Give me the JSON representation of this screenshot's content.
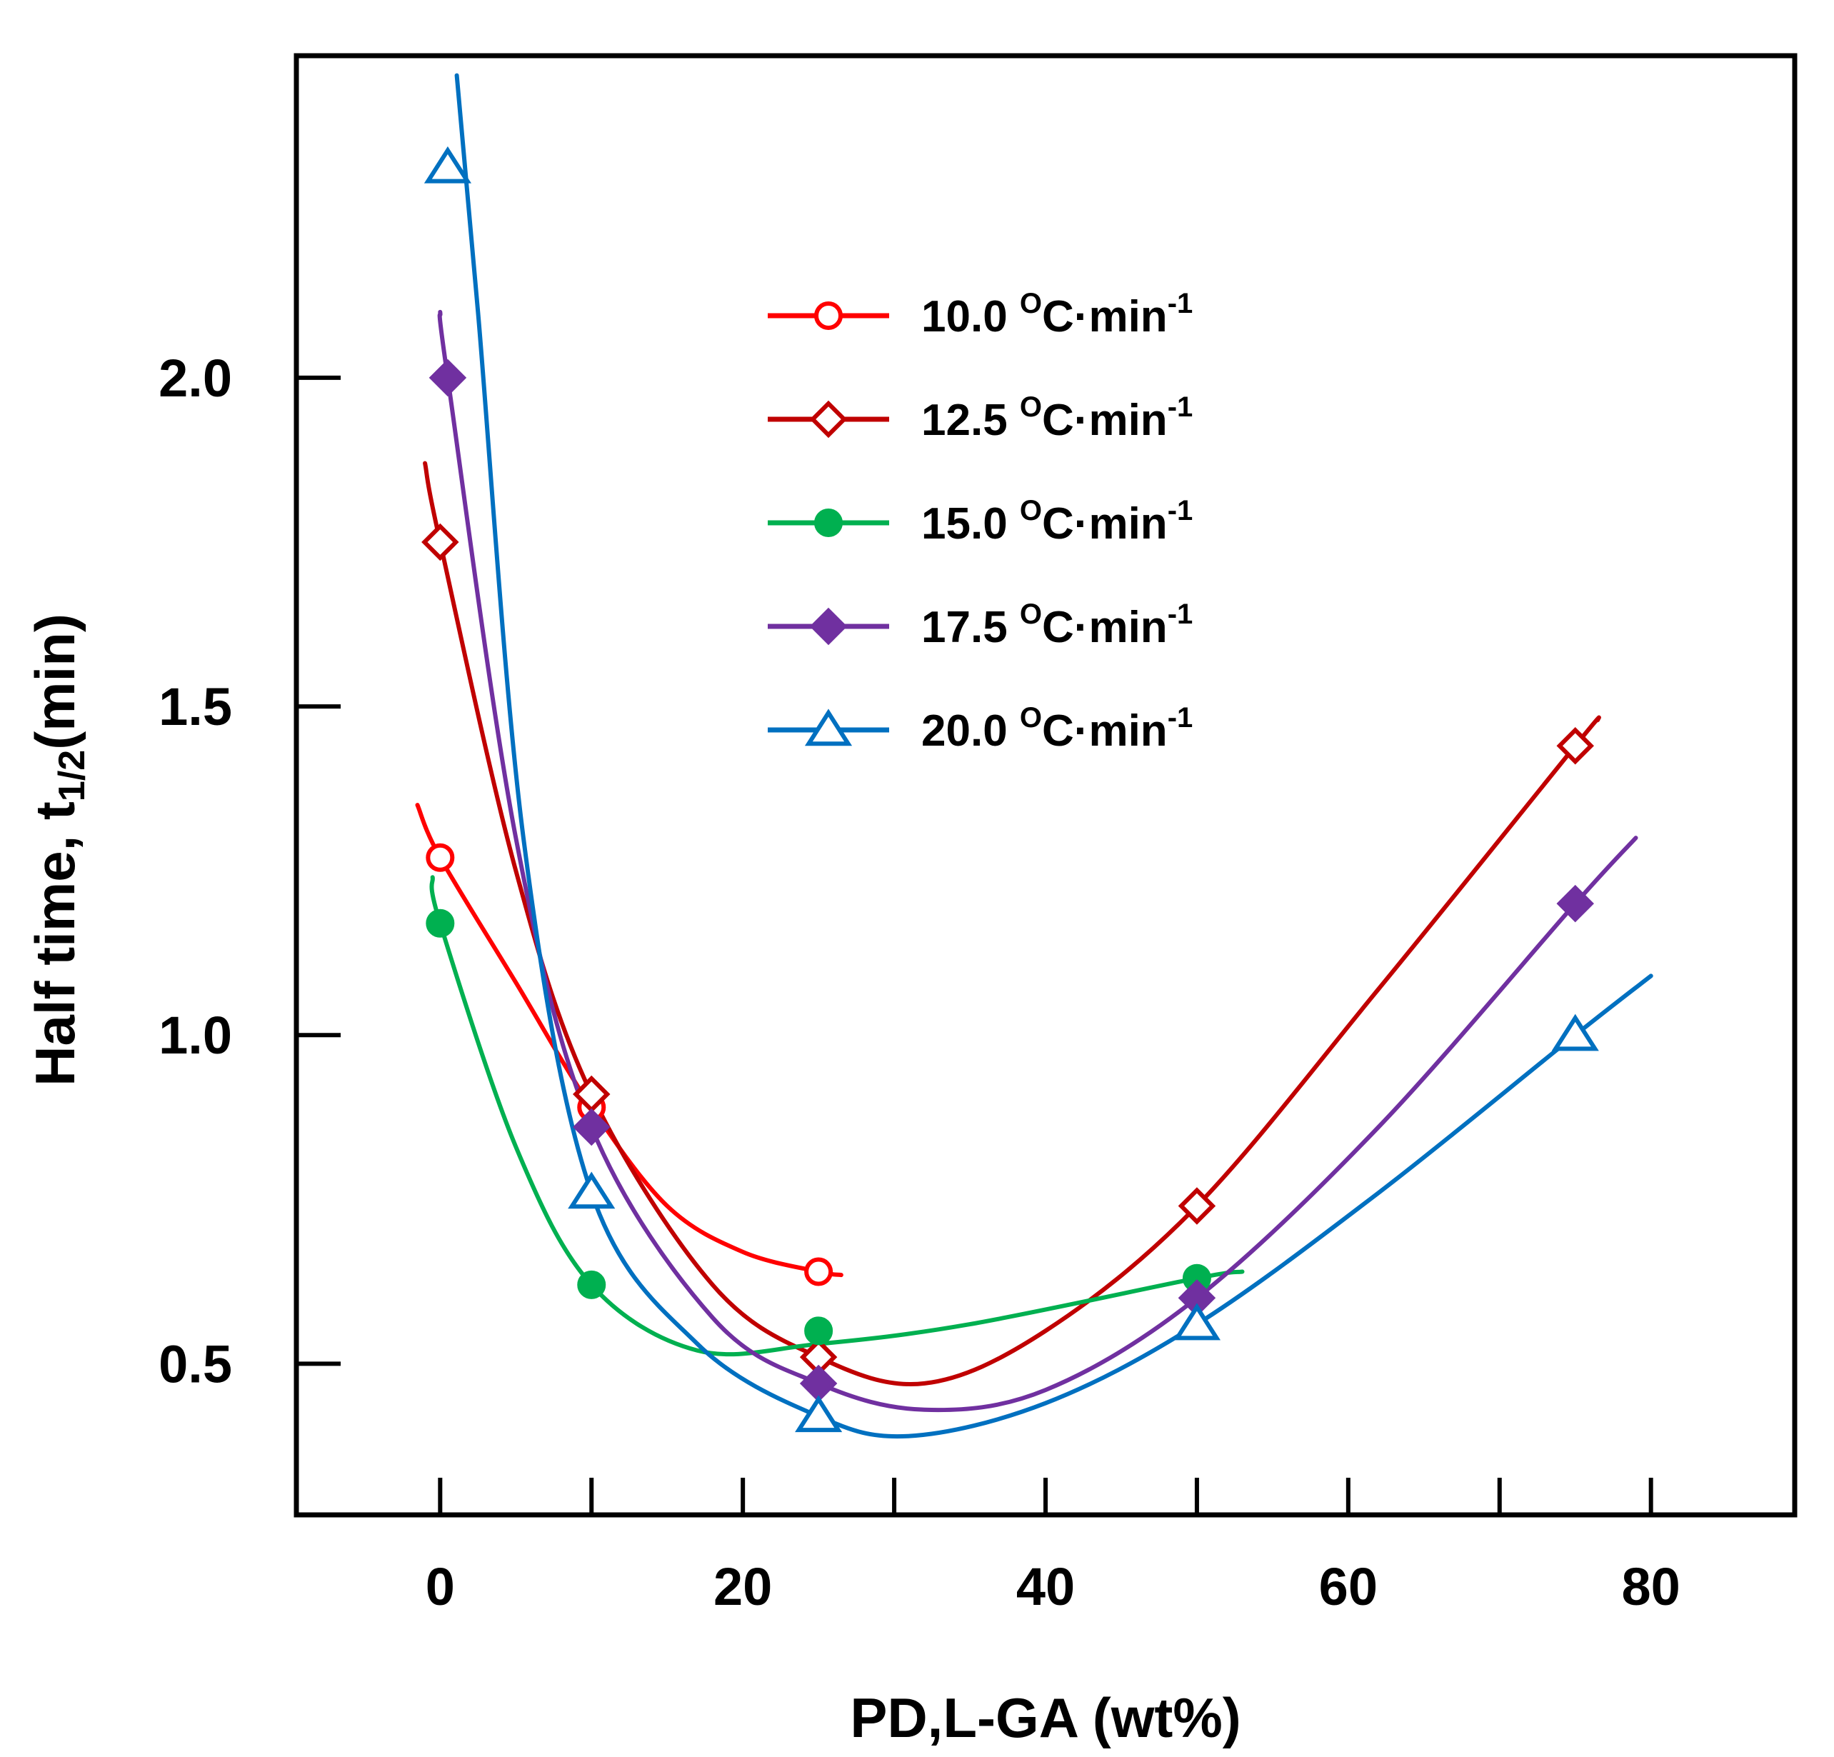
{
  "chart_data": {
    "type": "line",
    "title": "",
    "xlabel": "PD,L-GA (wt%)",
    "ylabel_main": "Half time, t",
    "ylabel_sub": "1/2",
    "ylabel_unit": "(min)",
    "xlim": [
      -9.5,
      89.5
    ],
    "ylim": [
      0.27,
      2.49
    ],
    "x_ticks": [
      0,
      20,
      40,
      60,
      80
    ],
    "x_minor_ticks": [
      10,
      30,
      50,
      70
    ],
    "y_ticks": [
      0.5,
      1.0,
      1.5,
      2.0
    ],
    "x_tick_labels": [
      "0",
      "20",
      "40",
      "60",
      "80"
    ],
    "y_tick_labels": [
      "0.5",
      "1.0",
      "1.5",
      "2.0"
    ],
    "legend_position": "top-center",
    "grid": false,
    "series": [
      {
        "name": "10.0",
        "legend_number": "10.0",
        "legend_unit_pre": "C·min",
        "legend_exp": "-1",
        "legend_sup_o": "O",
        "color": "#ff0000",
        "marker": "open-circle",
        "points": [
          [
            0,
            1.27
          ],
          [
            10,
            0.89
          ],
          [
            25,
            0.64
          ]
        ],
        "curve": [
          [
            -1.5,
            1.35
          ],
          [
            0,
            1.27
          ],
          [
            5,
            1.08
          ],
          [
            10,
            0.89
          ],
          [
            15,
            0.74
          ],
          [
            20,
            0.67
          ],
          [
            25,
            0.64
          ],
          [
            26.5,
            0.635
          ]
        ]
      },
      {
        "name": "12.5",
        "legend_number": "12.5",
        "legend_unit_pre": "C·min",
        "legend_exp": "-1",
        "legend_sup_o": "O",
        "color": "#c00000",
        "marker": "open-diamond",
        "points": [
          [
            0,
            1.75
          ],
          [
            10,
            0.91
          ],
          [
            25,
            0.51
          ],
          [
            50,
            0.74
          ],
          [
            75,
            1.44
          ]
        ],
        "curve": [
          [
            -1,
            1.87
          ],
          [
            0,
            1.75
          ],
          [
            5,
            1.25
          ],
          [
            10,
            0.91
          ],
          [
            18,
            0.62
          ],
          [
            25,
            0.51
          ],
          [
            32,
            0.47
          ],
          [
            40,
            0.55
          ],
          [
            50,
            0.74
          ],
          [
            62,
            1.07
          ],
          [
            75,
            1.44
          ],
          [
            76.5,
            1.48
          ]
        ]
      },
      {
        "name": "15.0",
        "legend_number": "15.0",
        "legend_unit_pre": "C·min",
        "legend_exp": "-1",
        "legend_sup_o": "O",
        "color": "#00b050",
        "marker": "filled-circle",
        "points": [
          [
            0,
            1.17
          ],
          [
            10,
            0.62
          ],
          [
            25,
            0.55
          ],
          [
            50,
            0.63
          ]
        ],
        "curve": [
          [
            -0.5,
            1.24
          ],
          [
            0,
            1.17
          ],
          [
            5,
            0.83
          ],
          [
            10,
            0.62
          ],
          [
            17,
            0.52
          ],
          [
            25,
            0.53
          ],
          [
            35,
            0.56
          ],
          [
            50,
            0.63
          ],
          [
            53,
            0.64
          ]
        ]
      },
      {
        "name": "17.5",
        "legend_number": "17.5",
        "legend_unit_pre": "C·min",
        "legend_exp": "-1",
        "legend_sup_o": "O",
        "color": "#7030a0",
        "marker": "filled-diamond",
        "points": [
          [
            0.5,
            2.0
          ],
          [
            10,
            0.86
          ],
          [
            25,
            0.47
          ],
          [
            50,
            0.6
          ],
          [
            75,
            1.2
          ]
        ],
        "curve": [
          [
            0,
            2.1
          ],
          [
            0.5,
            2.0
          ],
          [
            5,
            1.3
          ],
          [
            10,
            0.86
          ],
          [
            18,
            0.57
          ],
          [
            25,
            0.47
          ],
          [
            32,
            0.43
          ],
          [
            40,
            0.46
          ],
          [
            50,
            0.6
          ],
          [
            62,
            0.86
          ],
          [
            75,
            1.2
          ],
          [
            79,
            1.3
          ]
        ]
      },
      {
        "name": "20.0",
        "legend_number": "20.0",
        "legend_unit_pre": "C·min",
        "legend_exp": "-1",
        "legend_sup_o": "O",
        "color": "#0070c0",
        "marker": "open-triangle",
        "points": [
          [
            0.5,
            2.32
          ],
          [
            10,
            0.76
          ],
          [
            25,
            0.42
          ],
          [
            50,
            0.56
          ],
          [
            75,
            1.0
          ]
        ],
        "curve": [
          [
            1.1,
            2.46
          ],
          [
            2.5,
            2.1
          ],
          [
            5.5,
            1.3
          ],
          [
            10,
            0.76
          ],
          [
            17,
            0.53
          ],
          [
            25,
            0.42
          ],
          [
            31,
            0.39
          ],
          [
            40,
            0.44
          ],
          [
            50,
            0.56
          ],
          [
            62,
            0.76
          ],
          [
            75,
            1.0
          ],
          [
            80,
            1.09
          ]
        ]
      }
    ]
  }
}
